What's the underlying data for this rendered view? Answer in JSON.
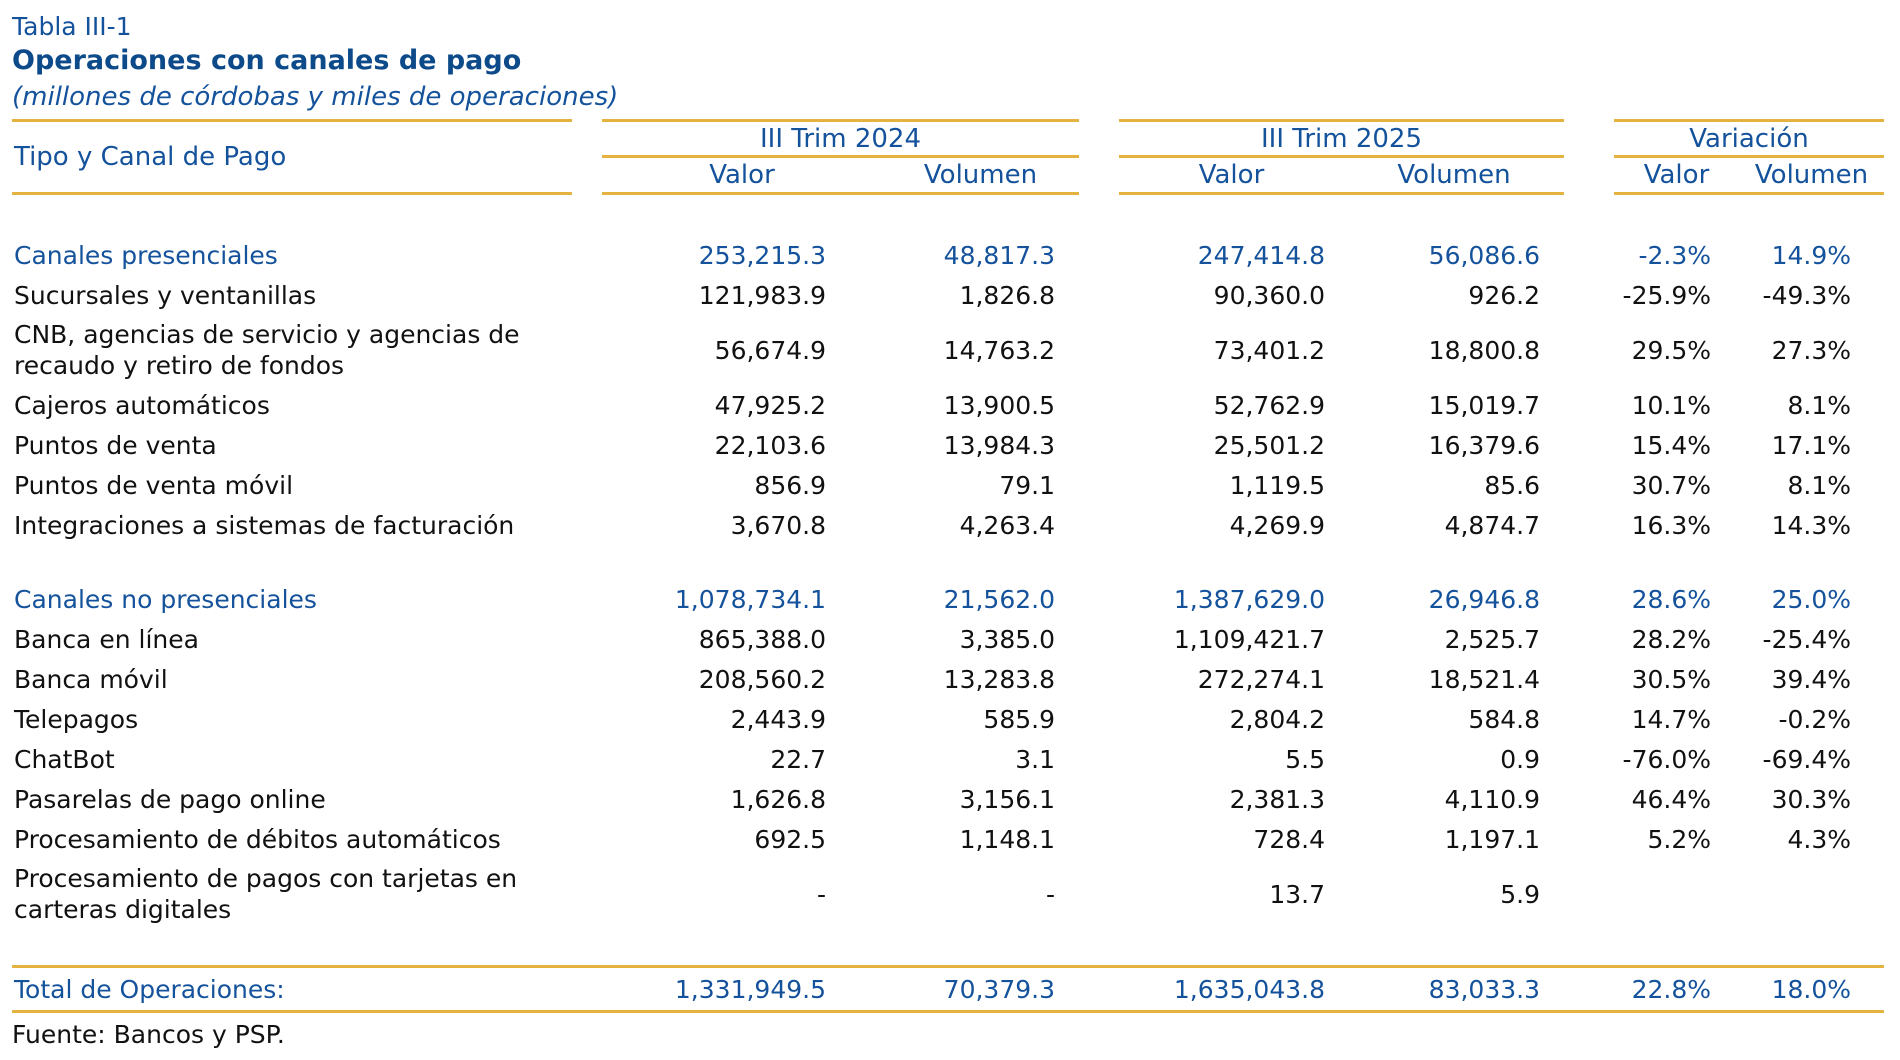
{
  "title": {
    "label": "Tabla III-1",
    "heading": "Operaciones con canales de pago",
    "subtitle": "(millones de córdobas y miles de operaciones)"
  },
  "colors": {
    "blue": "#14529C",
    "blue_dark": "#0D4A8A",
    "gold_rule": "#E4B23E",
    "text": "#111111"
  },
  "table": {
    "row_header": "Tipo y Canal de Pago",
    "groups": [
      {
        "label": "III Trim 2024",
        "columns": [
          "Valor",
          "Volumen"
        ]
      },
      {
        "label": "III Trim 2025",
        "columns": [
          "Valor",
          "Volumen"
        ]
      },
      {
        "label": "Variación",
        "columns": [
          "Valor",
          "Volumen"
        ]
      }
    ],
    "rows": [
      {
        "label": "Canales presenciales",
        "style": "section",
        "values": [
          "253,215.3",
          "48,817.3",
          "247,414.8",
          "56,086.6",
          "-2.3%",
          "14.9%"
        ]
      },
      {
        "label": "Sucursales y ventanillas",
        "style": "item",
        "values": [
          "121,983.9",
          "1,826.8",
          "90,360.0",
          "926.2",
          "-25.9%",
          "-49.3%"
        ]
      },
      {
        "label": "CNB, agencias de servicio y agencias de recaudo y retiro de fondos",
        "style": "item",
        "values": [
          "56,674.9",
          "14,763.2",
          "73,401.2",
          "18,800.8",
          "29.5%",
          "27.3%"
        ]
      },
      {
        "label": "Cajeros automáticos",
        "style": "item",
        "values": [
          "47,925.2",
          "13,900.5",
          "52,762.9",
          "15,019.7",
          "10.1%",
          "8.1%"
        ]
      },
      {
        "label": "Puntos de venta",
        "style": "item",
        "values": [
          "22,103.6",
          "13,984.3",
          "25,501.2",
          "16,379.6",
          "15.4%",
          "17.1%"
        ]
      },
      {
        "label": "Puntos de venta móvil",
        "style": "item",
        "values": [
          "856.9",
          "79.1",
          "1,119.5",
          "85.6",
          "30.7%",
          "8.1%"
        ]
      },
      {
        "label": "Integraciones a sistemas de facturación",
        "style": "item",
        "values": [
          "3,670.8",
          "4,263.4",
          "4,269.9",
          "4,874.7",
          "16.3%",
          "14.3%"
        ]
      },
      {
        "label": "Canales no presenciales",
        "style": "section gap-before",
        "values": [
          "1,078,734.1",
          "21,562.0",
          "1,387,629.0",
          "26,946.8",
          "28.6%",
          "25.0%"
        ]
      },
      {
        "label": "Banca en línea",
        "style": "item",
        "values": [
          "865,388.0",
          "3,385.0",
          "1,109,421.7",
          "2,525.7",
          "28.2%",
          "-25.4%"
        ]
      },
      {
        "label": "Banca móvil",
        "style": "item",
        "values": [
          "208,560.2",
          "13,283.8",
          "272,274.1",
          "18,521.4",
          "30.5%",
          "39.4%"
        ]
      },
      {
        "label": "Telepagos",
        "style": "item",
        "values": [
          "2,443.9",
          "585.9",
          "2,804.2",
          "584.8",
          "14.7%",
          "-0.2%"
        ]
      },
      {
        "label": "ChatBot",
        "style": "item",
        "values": [
          "22.7",
          "3.1",
          "5.5",
          "0.9",
          "-76.0%",
          "-69.4%"
        ]
      },
      {
        "label": "Pasarelas de pago online",
        "style": "item",
        "values": [
          "1,626.8",
          "3,156.1",
          "2,381.3",
          "4,110.9",
          "46.4%",
          "30.3%"
        ]
      },
      {
        "label": "Procesamiento de débitos automáticos",
        "style": "item",
        "values": [
          "692.5",
          "1,148.1",
          "728.4",
          "1,197.1",
          "5.2%",
          "4.3%"
        ]
      },
      {
        "label": "Procesamiento de pagos con tarjetas en carteras digitales",
        "style": "item",
        "values": [
          "-",
          "-",
          "13.7",
          "5.9",
          "",
          ""
        ]
      }
    ],
    "total": {
      "label": "Total de Operaciones:",
      "values": [
        "1,331,949.5",
        "70,379.3",
        "1,635,043.8",
        "83,033.3",
        "22.8%",
        "18.0%"
      ]
    }
  },
  "footer": {
    "source": "Fuente: Bancos y PSP."
  }
}
